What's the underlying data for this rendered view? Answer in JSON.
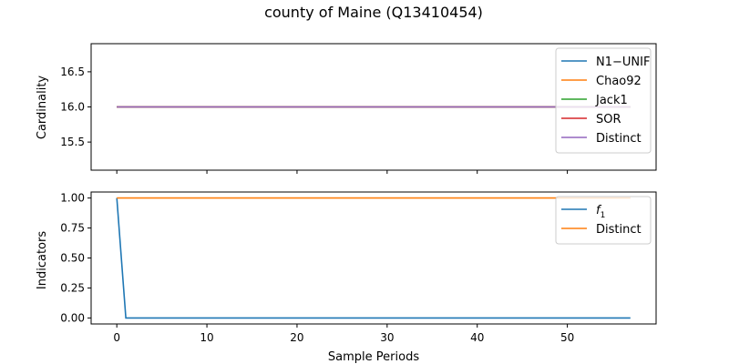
{
  "chart_data": {
    "title": "county of Maine (Q13410454)",
    "xlabel": "Sample Periods",
    "x_ticks": [
      0,
      10,
      20,
      30,
      40,
      50
    ],
    "panels": [
      {
        "type": "line",
        "ylabel": "Cardinality",
        "xlim": [
          -2.85,
          59.85
        ],
        "ylim": [
          15.1,
          16.9
        ],
        "y_ticks": [
          "15.5",
          "16.0",
          "16.5"
        ],
        "y_tick_values": [
          15.5,
          16.0,
          16.5
        ],
        "legend_position": "upper right",
        "series": [
          {
            "name": "N1−UNIF",
            "color": "#1f77b4",
            "x_range": [
              0,
              57
            ],
            "constant": 16
          },
          {
            "name": "Chao92",
            "color": "#ff7f0e",
            "x_range": [
              0,
              57
            ],
            "constant": 16
          },
          {
            "name": "Jack1",
            "color": "#2ca02c",
            "x_range": [
              0,
              57
            ],
            "constant": 16
          },
          {
            "name": "SOR",
            "color": "#d62728",
            "x_range": [
              0,
              57
            ],
            "constant": 16
          },
          {
            "name": "Distinct",
            "color": "#9467bd",
            "x_range": [
              0,
              57
            ],
            "constant": 16
          }
        ]
      },
      {
        "type": "line",
        "ylabel": "Indicators",
        "xlim": [
          -2.85,
          59.85
        ],
        "ylim": [
          -0.05,
          1.05
        ],
        "y_ticks": [
          "0.00",
          "0.25",
          "0.50",
          "0.75",
          "1.00"
        ],
        "y_tick_values": [
          0,
          0.25,
          0.5,
          0.75,
          1.0
        ],
        "legend_position": "upper right",
        "series": [
          {
            "name": "f",
            "subscript": "1",
            "color": "#1f77b4",
            "points": [
              [
                0,
                1.0
              ],
              [
                1,
                0.0
              ],
              [
                57,
                0.0
              ]
            ]
          },
          {
            "name": "Distinct",
            "color": "#ff7f0e",
            "points": [
              [
                0,
                1.0
              ],
              [
                57,
                1.0
              ]
            ]
          }
        ]
      }
    ]
  }
}
